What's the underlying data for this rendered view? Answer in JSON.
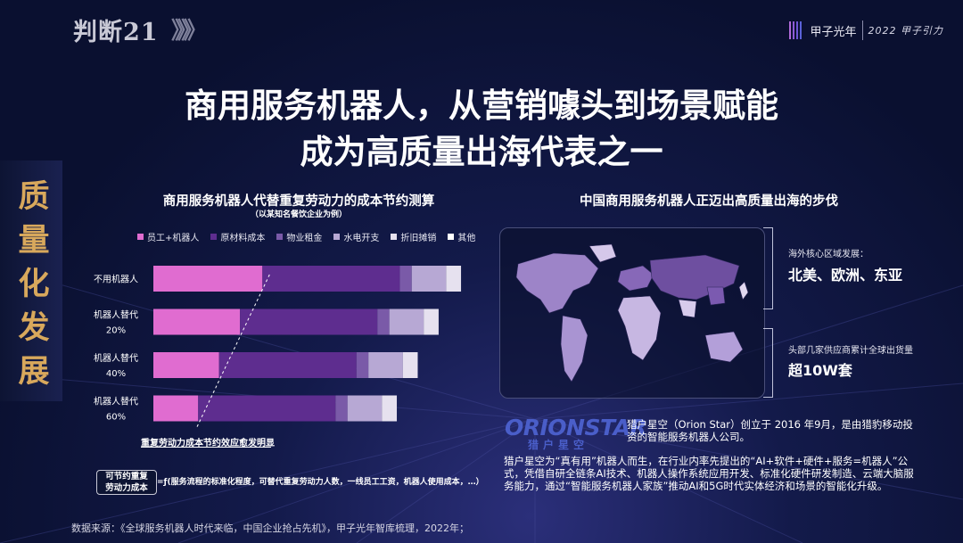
{
  "header": {
    "brand_left": "判断21",
    "brand_chevrons": "》》》",
    "logo_text": "甲子光年",
    "logo_sub": "2022 甲子引力"
  },
  "title": {
    "line1": "商用服务机器人，从营销噱头到场景赋能",
    "line2": "成为高质量出海代表之一"
  },
  "side_label": [
    "质",
    "量",
    "化",
    "发",
    "展"
  ],
  "left_chart": {
    "title": "商用服务机器人代替重复劳动力的成本节约测算",
    "subtitle": "（以某知名餐饮企业为例）",
    "annotation": "重复劳动力成本节约效应愈发明显",
    "box_label_line1": "可节约重复",
    "box_label_line2": "劳动力成本",
    "formula": "=ƒ(服务流程的标准化程度，可替代重复劳动力人数，一线员工工资，机器人使用成本，…）"
  },
  "chart_data": {
    "type": "bar",
    "orientation": "horizontal",
    "stacked": true,
    "title": "商用服务机器人代替重复劳动力的成本节约测算",
    "subtitle": "（以某知名餐饮企业为例）",
    "categories": [
      "不用机器人",
      "机器人替代\n20%",
      "机器人替代\n40%",
      "机器人替代\n60%"
    ],
    "legend_position": "top",
    "grid": false,
    "series": [
      {
        "name": "员工+机器人",
        "color": "#e06cd0",
        "values": [
          36.5,
          29,
          22,
          15
        ]
      },
      {
        "name": "原材料成本",
        "color": "#5e2d8f",
        "values": [
          46,
          46,
          46,
          46
        ]
      },
      {
        "name": "物业租金",
        "color": "#7a5aa8",
        "values": [
          4,
          4,
          4,
          4
        ]
      },
      {
        "name": "水电开支",
        "color": "#b7a8d4",
        "values": [
          11.5,
          11.5,
          11.5,
          11.5
        ]
      },
      {
        "name": "折旧摊销",
        "color": "#e6e1ef",
        "values": [
          5,
          5,
          5,
          5
        ]
      },
      {
        "name": "其他",
        "color": "#ffffff",
        "values": [
          0,
          0,
          0,
          0
        ]
      }
    ]
  },
  "right_panel": {
    "title": "中国商用服务机器人正迈出高质量出海的步伐",
    "region_label": "海外核心区域发展：",
    "region_value": "北美、欧洲、东亚",
    "shipment_label": "头部几家供应商累计全球出货量",
    "shipment_value": "超10W套"
  },
  "company": {
    "logo": "ORIONSTAR",
    "logo_cn": "猎户星空",
    "para1": "猎户星空（Orion Star）创立于 2016 年9月，是由猎豹移动投资的智能服务机器人公司。",
    "para2": "猎户星空为“真有用”机器人而生，在行业内率先提出的“AI+软件+硬件+服务=机器人”公式，凭借自研全链条AI技术、机器人操作系统应用开发、标准化硬件研发制造、云端大脑服务能力，通过“智能服务机器人家族”推动AI和5G时代实体经济和场景的智能化升级。"
  },
  "source": "数据来源：《全球服务机器人时代来临，中国企业抢占先机》，甲子光年智库梳理，2022年；",
  "colors": {
    "background": "#0b1230",
    "accent_gold": "#d8a85c",
    "orion_blue": "#4a5ec9"
  }
}
